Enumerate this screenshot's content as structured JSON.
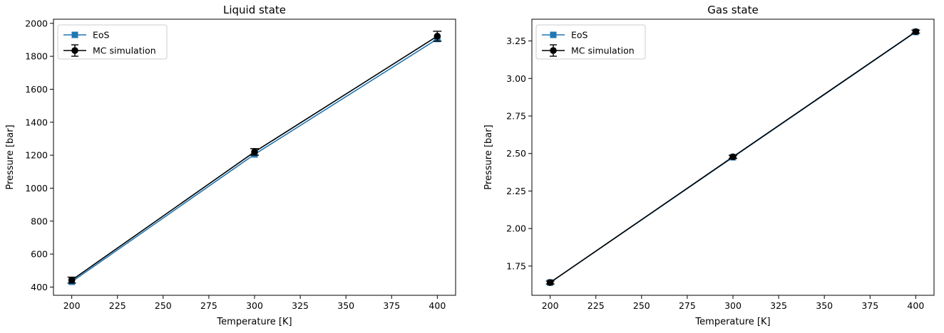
{
  "chart_data": [
    {
      "type": "line",
      "title": "Liquid state",
      "xlabel": "Temperature  [K]",
      "ylabel": "Pressure  [bar]",
      "xlim": [
        190,
        410
      ],
      "ylim": [
        350,
        2025
      ],
      "xticks": [
        200,
        225,
        250,
        275,
        300,
        325,
        350,
        375,
        400
      ],
      "yticks": [
        400,
        600,
        800,
        1000,
        1200,
        1400,
        1600,
        1800,
        2000
      ],
      "ytick_labels": [
        "400",
        "600",
        "800",
        "1000",
        "1200",
        "1400",
        "1600",
        "1800",
        "2000"
      ],
      "legend_position": "upper-left",
      "series": [
        {
          "name": "EoS",
          "color": "#1f77b4",
          "marker": "square",
          "x": [
            200,
            300,
            400
          ],
          "y": [
            432,
            1205,
            1905
          ]
        },
        {
          "name": "MC simulation",
          "color": "#000000",
          "marker": "circle",
          "x": [
            200,
            300,
            400
          ],
          "y": [
            442,
            1220,
            1922
          ],
          "yerr": [
            18,
            20,
            30
          ]
        }
      ]
    },
    {
      "type": "line",
      "title": "Gas state",
      "xlabel": "Temperature  [K]",
      "ylabel": "Pressure  [bar]",
      "xlim": [
        190,
        410
      ],
      "ylim": [
        1.555,
        3.395
      ],
      "xticks": [
        200,
        225,
        250,
        275,
        300,
        325,
        350,
        375,
        400
      ],
      "yticks": [
        1.75,
        2.0,
        2.25,
        2.5,
        2.75,
        3.0,
        3.25
      ],
      "ytick_labels": [
        "1.75",
        "2.00",
        "2.25",
        "2.50",
        "2.75",
        "3.00",
        "3.25"
      ],
      "legend_position": "upper-left",
      "series": [
        {
          "name": "EoS",
          "color": "#1f77b4",
          "marker": "square",
          "x": [
            200,
            300,
            400
          ],
          "y": [
            1.64,
            2.475,
            3.31
          ]
        },
        {
          "name": "MC simulation",
          "color": "#000000",
          "marker": "circle",
          "x": [
            200,
            300,
            400
          ],
          "y": [
            1.64,
            2.478,
            3.312
          ],
          "yerr": [
            0.01,
            0.01,
            0.01
          ]
        }
      ]
    }
  ]
}
